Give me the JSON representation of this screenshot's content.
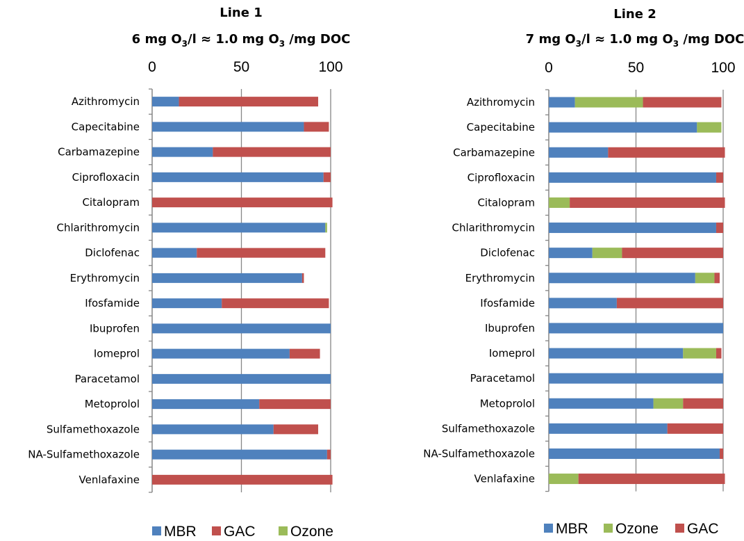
{
  "colors": {
    "MBR": "#4F81BD",
    "GAC": "#C0504D",
    "Ozone": "#9BBB59",
    "axis": "#868686",
    "grid": "#868686"
  },
  "chart_data": [
    {
      "type": "bar",
      "orientation": "horizontal",
      "stacked": true,
      "title_line1": "Line 1",
      "title_parts": [
        "6 mg O",
        "3",
        "/l ≈ 1.0 mg O",
        "3",
        " /mg DOC"
      ],
      "xlim": [
        0,
        100
      ],
      "xticks": [
        "0",
        "50",
        "100"
      ],
      "grid": true,
      "legend_position": "bottom",
      "categories": [
        "Azithromycin",
        "Capecitabine",
        "Carbamazepine",
        "Ciprofloxacin",
        "Citalopram",
        "Chlarithromycin",
        "Diclofenac",
        "Erythromycin",
        "Ifosfamide",
        "Ibuprofen",
        "Iomeprol",
        "Paracetamol",
        "Metoprolol",
        "Sulfamethoxazole",
        "NA-Sulfamethoxazole",
        "Venlafaxine"
      ],
      "series": [
        {
          "name": "MBR",
          "values": [
            15,
            85,
            34,
            96,
            0,
            97,
            25,
            84,
            39,
            100,
            77,
            100,
            60,
            68,
            98,
            0
          ]
        },
        {
          "name": "GAC",
          "values": [
            78,
            14,
            66,
            4,
            101,
            0,
            72,
            1,
            60,
            0,
            17,
            0,
            40,
            25,
            2,
            101
          ]
        },
        {
          "name": "Ozone",
          "values": [
            0,
            0,
            0,
            0,
            0,
            1,
            0,
            0,
            0,
            0,
            0,
            0,
            0,
            0,
            0,
            0
          ]
        }
      ]
    },
    {
      "type": "bar",
      "orientation": "horizontal",
      "stacked": true,
      "title_line1": "Line 2",
      "title_parts": [
        "7 mg O",
        "3",
        "/l ≈ 1.0 mg O",
        "3",
        " /mg DOC"
      ],
      "xlim": [
        0,
        100
      ],
      "xticks": [
        "0",
        "50",
        "100"
      ],
      "grid": true,
      "legend_position": "bottom",
      "categories": [
        "Azithromycin",
        "Capecitabine",
        "Carbamazepine",
        "Ciprofloxacin",
        "Citalopram",
        "Chlarithromycin",
        "Diclofenac",
        "Erythromycin",
        "Ifosfamide",
        "Ibuprofen",
        "Iomeprol",
        "Paracetamol",
        "Metoprolol",
        "Sulfamethoxazole",
        "NA-Sulfamethoxazole",
        "Venlafaxine"
      ],
      "series": [
        {
          "name": "MBR",
          "values": [
            15,
            85,
            34,
            96,
            0,
            96,
            25,
            84,
            39,
            100,
            77,
            100,
            60,
            68,
            98,
            0
          ]
        },
        {
          "name": "Ozone",
          "values": [
            39,
            14,
            0,
            0,
            12,
            0,
            17,
            11,
            0,
            0,
            19,
            0,
            17,
            0,
            0,
            17
          ]
        },
        {
          "name": "GAC",
          "values": [
            45,
            0,
            67,
            4,
            89,
            4,
            58,
            3,
            61,
            0,
            3,
            0,
            23,
            32,
            2,
            84
          ]
        }
      ]
    }
  ]
}
